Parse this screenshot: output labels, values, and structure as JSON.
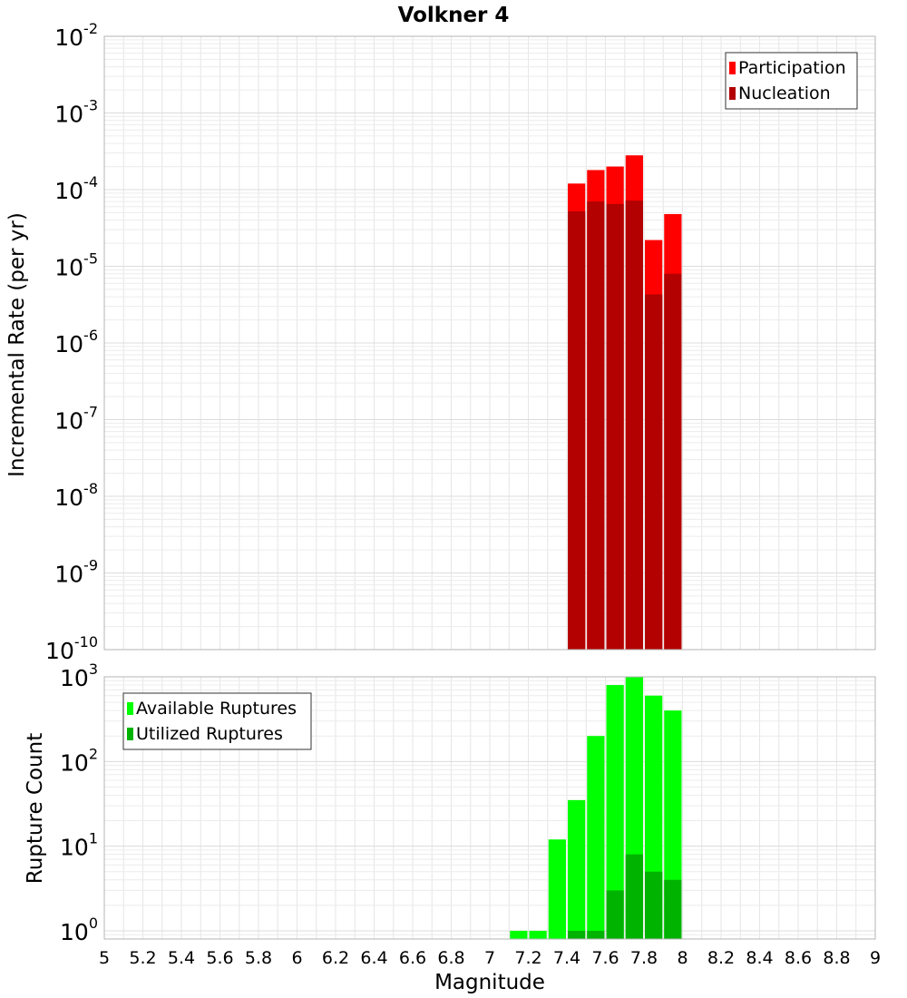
{
  "chart_data": [
    {
      "type": "bar",
      "title": "Volkner 4",
      "xlabel": "",
      "ylabel": "Incremental Rate (per yr)",
      "yscale": "log",
      "ylim": [
        1e-10,
        0.01
      ],
      "xlim": [
        5,
        9
      ],
      "bar_width": 0.1,
      "grid": true,
      "legend_position": "top-right",
      "y_ticks": [
        {
          "base": "10",
          "exp": "-10",
          "v": 1e-10
        },
        {
          "base": "10",
          "exp": "-9",
          "v": 1e-09
        },
        {
          "base": "10",
          "exp": "-8",
          "v": 1e-08
        },
        {
          "base": "10",
          "exp": "-7",
          "v": 1e-07
        },
        {
          "base": "10",
          "exp": "-6",
          "v": 1e-06
        },
        {
          "base": "10",
          "exp": "-5",
          "v": 1e-05
        },
        {
          "base": "10",
          "exp": "-4",
          "v": 0.0001
        },
        {
          "base": "10",
          "exp": "-3",
          "v": 0.001
        },
        {
          "base": "10",
          "exp": "-2",
          "v": 0.01
        }
      ],
      "x": [
        7.45,
        7.55,
        7.65,
        7.75,
        7.85,
        7.95
      ],
      "series": [
        {
          "name": "Participation",
          "color": "#ff0000",
          "values": [
            0.00012,
            0.00018,
            0.0002,
            0.00028,
            2.2e-05,
            4.8e-05
          ]
        },
        {
          "name": "Nucleation",
          "color": "#b30000",
          "values": [
            5.2e-05,
            7e-05,
            6.5e-05,
            7.2e-05,
            4.3e-06,
            8e-06
          ]
        }
      ]
    },
    {
      "type": "bar",
      "title": "",
      "xlabel": "Magnitude",
      "ylabel": "Rupture Count",
      "yscale": "log",
      "ylim": [
        0.8,
        1000
      ],
      "xlim": [
        5,
        9
      ],
      "bar_width": 0.1,
      "grid": true,
      "legend_position": "top-left",
      "y_ticks": [
        {
          "base": "10",
          "exp": "0",
          "v": 1
        },
        {
          "base": "10",
          "exp": "1",
          "v": 10
        },
        {
          "base": "10",
          "exp": "2",
          "v": 100
        },
        {
          "base": "10",
          "exp": "3",
          "v": 1000
        }
      ],
      "x_ticks": [
        "5",
        "5.2",
        "5.4",
        "5.6",
        "5.8",
        "6",
        "6.2",
        "6.4",
        "6.6",
        "6.8",
        "7",
        "7.2",
        "7.4",
        "7.6",
        "7.8",
        "8",
        "8.2",
        "8.4",
        "8.6",
        "8.8",
        "9"
      ],
      "x": [
        7.15,
        7.25,
        7.35,
        7.45,
        7.55,
        7.65,
        7.75,
        7.85,
        7.95
      ],
      "series": [
        {
          "name": "Available Ruptures",
          "color": "#00ff00",
          "values": [
            1,
            1,
            12,
            35,
            200,
            800,
            1000,
            600,
            400
          ]
        },
        {
          "name": "Utilized Ruptures",
          "color": "#00b300",
          "values": [
            0,
            0,
            0,
            1,
            1,
            3,
            8,
            5,
            4
          ]
        }
      ]
    }
  ]
}
